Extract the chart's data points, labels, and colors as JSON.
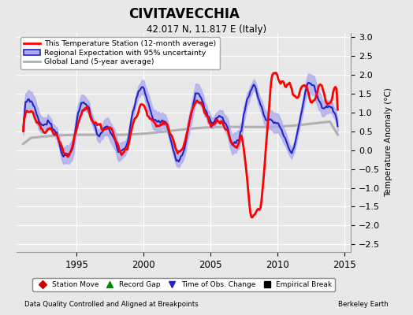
{
  "title": "CIVITAVECCHIA",
  "subtitle": "42.017 N, 11.817 E (Italy)",
  "ylabel": "Temperature Anomaly (°C)",
  "xlabel_left": "Data Quality Controlled and Aligned at Breakpoints",
  "xlabel_right": "Berkeley Earth",
  "ylim": [
    -2.7,
    3.1
  ],
  "yticks": [
    -2.5,
    -2,
    -1.5,
    -1,
    -0.5,
    0,
    0.5,
    1,
    1.5,
    2,
    2.5,
    3
  ],
  "xlim": [
    1990.5,
    2015.5
  ],
  "xticks": [
    1995,
    2000,
    2005,
    2010,
    2015
  ],
  "bg_color": "#e8e8e8",
  "grid_color": "#ffffff",
  "station_color": "#ff0000",
  "regional_color": "#2222cc",
  "regional_fill_color": "#aaaaee",
  "global_color": "#b0b0b0",
  "legend_items": [
    {
      "label": "This Temperature Station (12-month average)",
      "color": "#ff0000",
      "lw": 2
    },
    {
      "label": "Regional Expectation with 95% uncertainty",
      "color": "#2222cc",
      "lw": 1.5
    },
    {
      "label": "Global Land (5-year average)",
      "color": "#b0b0b0",
      "lw": 2
    }
  ],
  "bottom_legend": [
    {
      "label": "Station Move",
      "color": "#cc0000",
      "marker": "D"
    },
    {
      "label": "Record Gap",
      "color": "#008800",
      "marker": "^"
    },
    {
      "label": "Time of Obs. Change",
      "color": "#2222cc",
      "marker": "v"
    },
    {
      "label": "Empirical Break",
      "color": "#000000",
      "marker": "s"
    }
  ]
}
